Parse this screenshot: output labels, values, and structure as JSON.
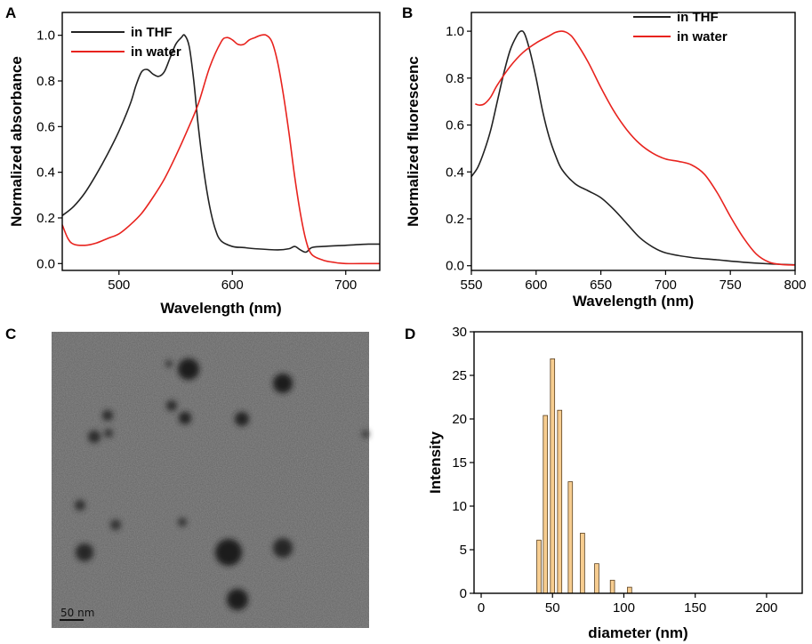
{
  "figure": {
    "panels": [
      {
        "letter": "A"
      },
      {
        "letter": "B"
      },
      {
        "letter": "C"
      },
      {
        "letter": "D"
      }
    ],
    "tem": {
      "scale_bar_label": "50 nm",
      "description_icon": "tem-micrograph-image"
    }
  },
  "chart_data": [
    {
      "id": "A",
      "type": "line",
      "title": "",
      "xlabel": "Wavelength (nm)",
      "ylabel": "Normalized absorbance",
      "xlim": [
        450,
        730
      ],
      "ylim": [
        -0.03,
        1.1
      ],
      "xticks": [
        500,
        600,
        700
      ],
      "yticks": [
        0.0,
        0.2,
        0.4,
        0.6,
        0.8,
        1.0
      ],
      "ytick_labels": [
        "0.0",
        "0.2",
        "0.4",
        "0.6",
        "0.8",
        "1.0"
      ],
      "legend": "top-left",
      "grid": false,
      "series": [
        {
          "name": "in THF",
          "color": "#222222",
          "x": [
            450,
            460,
            470,
            480,
            490,
            500,
            510,
            515,
            520,
            525,
            530,
            535,
            540,
            545,
            550,
            555,
            558,
            562,
            566,
            570,
            575,
            580,
            585,
            590,
            600,
            610,
            620,
            640,
            650,
            655,
            660,
            665,
            670,
            680,
            700,
            720,
            730
          ],
          "y": [
            0.21,
            0.25,
            0.31,
            0.39,
            0.48,
            0.58,
            0.7,
            0.78,
            0.84,
            0.85,
            0.83,
            0.82,
            0.84,
            0.9,
            0.96,
            0.99,
            1.0,
            0.95,
            0.8,
            0.6,
            0.4,
            0.25,
            0.15,
            0.1,
            0.075,
            0.07,
            0.065,
            0.06,
            0.065,
            0.075,
            0.06,
            0.05,
            0.07,
            0.075,
            0.08,
            0.085,
            0.085
          ]
        },
        {
          "name": "in water",
          "color": "#e8231e",
          "x": [
            450,
            455,
            460,
            470,
            480,
            490,
            500,
            510,
            520,
            530,
            540,
            550,
            560,
            570,
            580,
            590,
            595,
            600,
            605,
            610,
            615,
            620,
            625,
            630,
            635,
            640,
            645,
            650,
            655,
            660,
            665,
            670,
            680,
            690,
            700,
            720,
            730
          ],
          "y": [
            0.17,
            0.11,
            0.085,
            0.08,
            0.09,
            0.11,
            0.13,
            0.17,
            0.22,
            0.29,
            0.37,
            0.47,
            0.58,
            0.7,
            0.86,
            0.97,
            0.99,
            0.98,
            0.96,
            0.96,
            0.98,
            0.99,
            1.0,
            1.0,
            0.97,
            0.88,
            0.74,
            0.57,
            0.38,
            0.22,
            0.1,
            0.04,
            0.015,
            0.005,
            0.0,
            0.0,
            0.0
          ]
        }
      ]
    },
    {
      "id": "B",
      "type": "line",
      "title": "",
      "xlabel": "Wavelength (nm)",
      "ylabel": "Normalized fluorescenc",
      "xlim": [
        550,
        800
      ],
      "ylim": [
        -0.02,
        1.08
      ],
      "xticks": [
        550,
        600,
        650,
        700,
        750,
        800
      ],
      "yticks": [
        0.0,
        0.2,
        0.4,
        0.6,
        0.8,
        1.0
      ],
      "ytick_labels": [
        "0.0",
        "0.2",
        "0.4",
        "0.6",
        "0.8",
        "1.0"
      ],
      "legend": "top-right",
      "grid": false,
      "series": [
        {
          "name": "in THF",
          "color": "#222222",
          "x": [
            550,
            555,
            560,
            565,
            570,
            575,
            580,
            585,
            588,
            591,
            595,
            600,
            605,
            610,
            615,
            620,
            630,
            640,
            650,
            660,
            670,
            680,
            690,
            700,
            720,
            740,
            760,
            780,
            800
          ],
          "y": [
            0.38,
            0.42,
            0.49,
            0.58,
            0.7,
            0.82,
            0.92,
            0.98,
            1.0,
            0.99,
            0.92,
            0.8,
            0.66,
            0.55,
            0.47,
            0.41,
            0.35,
            0.32,
            0.29,
            0.24,
            0.18,
            0.12,
            0.08,
            0.055,
            0.035,
            0.025,
            0.015,
            0.008,
            0.004
          ]
        },
        {
          "name": "in water",
          "color": "#e8231e",
          "x": [
            553,
            556,
            560,
            565,
            570,
            580,
            590,
            600,
            610,
            615,
            620,
            625,
            630,
            640,
            650,
            660,
            670,
            680,
            690,
            700,
            710,
            720,
            730,
            740,
            750,
            760,
            770,
            780,
            790,
            800
          ],
          "y": [
            0.69,
            0.685,
            0.69,
            0.72,
            0.77,
            0.85,
            0.91,
            0.95,
            0.98,
            0.995,
            1.0,
            0.99,
            0.96,
            0.87,
            0.76,
            0.66,
            0.58,
            0.52,
            0.48,
            0.455,
            0.445,
            0.43,
            0.39,
            0.31,
            0.21,
            0.12,
            0.05,
            0.015,
            0.005,
            0.003
          ]
        }
      ]
    },
    {
      "id": "D",
      "type": "bar",
      "title": "",
      "xlabel": "diameter (nm)",
      "ylabel": "Intensity",
      "xlim": [
        -5,
        225
      ],
      "ylim": [
        0,
        30
      ],
      "xticks": [
        0,
        50,
        100,
        150,
        200
      ],
      "yticks": [
        0,
        5,
        10,
        15,
        20,
        25,
        30
      ],
      "bar_width": 3,
      "bar_color": "#f7cd90",
      "bar_edge": "#5a4020",
      "grid": false,
      "x": [
        40.5,
        45,
        50,
        55,
        62.5,
        71,
        81,
        92,
        104
      ],
      "values": [
        6.1,
        20.4,
        26.9,
        21.0,
        12.8,
        6.9,
        3.4,
        1.5,
        0.7
      ]
    }
  ]
}
